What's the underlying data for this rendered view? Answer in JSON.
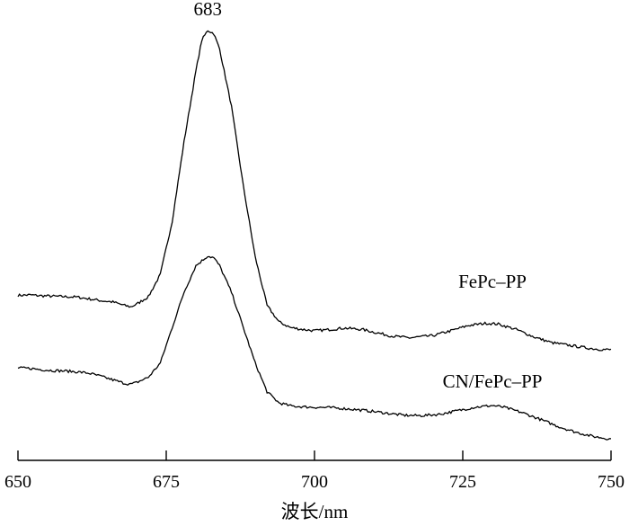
{
  "chart_data": {
    "type": "line",
    "title": "",
    "xlabel": "波长/nm",
    "ylabel": "",
    "xlim": [
      650,
      750
    ],
    "ylim": [
      0,
      1
    ],
    "x_ticks": [
      650,
      675,
      700,
      725,
      750
    ],
    "grid": false,
    "y_axis_visible": false,
    "annotations": [
      {
        "text": "683",
        "x": 682,
        "y": 0.97
      }
    ],
    "series": [
      {
        "name": "FePc–PP",
        "label_position": "right, above curve",
        "color": "#000000",
        "points": [
          [
            650,
            0.373
          ],
          [
            652,
            0.374
          ],
          [
            654,
            0.372
          ],
          [
            656,
            0.371
          ],
          [
            658,
            0.37
          ],
          [
            660,
            0.369
          ],
          [
            662,
            0.365
          ],
          [
            664,
            0.361
          ],
          [
            666,
            0.358
          ],
          [
            668,
            0.35
          ],
          [
            669,
            0.347
          ],
          [
            670,
            0.353
          ],
          [
            672,
            0.37
          ],
          [
            674,
            0.42
          ],
          [
            676,
            0.54
          ],
          [
            678,
            0.72
          ],
          [
            680,
            0.88
          ],
          [
            681,
            0.95
          ],
          [
            682,
            0.972
          ],
          [
            683,
            0.965
          ],
          [
            684,
            0.93
          ],
          [
            686,
            0.8
          ],
          [
            688,
            0.62
          ],
          [
            690,
            0.46
          ],
          [
            692,
            0.35
          ],
          [
            694,
            0.313
          ],
          [
            696,
            0.3
          ],
          [
            698,
            0.296
          ],
          [
            700,
            0.293
          ],
          [
            702,
            0.295
          ],
          [
            705,
            0.299
          ],
          [
            708,
            0.296
          ],
          [
            710,
            0.29
          ],
          [
            713,
            0.281
          ],
          [
            716,
            0.277
          ],
          [
            720,
            0.282
          ],
          [
            723,
            0.293
          ],
          [
            726,
            0.305
          ],
          [
            729,
            0.31
          ],
          [
            731,
            0.308
          ],
          [
            734,
            0.296
          ],
          [
            737,
            0.279
          ],
          [
            740,
            0.266
          ],
          [
            743,
            0.26
          ],
          [
            746,
            0.254
          ],
          [
            748,
            0.251
          ],
          [
            750,
            0.25
          ]
        ]
      },
      {
        "name": "CN/FePc–PP",
        "label_position": "right, above curve",
        "color": "#000000",
        "points": [
          [
            650,
            0.209
          ],
          [
            652,
            0.208
          ],
          [
            654,
            0.205
          ],
          [
            656,
            0.203
          ],
          [
            658,
            0.202
          ],
          [
            660,
            0.2
          ],
          [
            662,
            0.197
          ],
          [
            664,
            0.19
          ],
          [
            666,
            0.182
          ],
          [
            668,
            0.174
          ],
          [
            669,
            0.172
          ],
          [
            670,
            0.176
          ],
          [
            672,
            0.188
          ],
          [
            674,
            0.22
          ],
          [
            676,
            0.3
          ],
          [
            678,
            0.38
          ],
          [
            680,
            0.44
          ],
          [
            682,
            0.462
          ],
          [
            683,
            0.458
          ],
          [
            684,
            0.44
          ],
          [
            686,
            0.38
          ],
          [
            688,
            0.3
          ],
          [
            690,
            0.22
          ],
          [
            692,
            0.155
          ],
          [
            694,
            0.13
          ],
          [
            696,
            0.123
          ],
          [
            698,
            0.121
          ],
          [
            700,
            0.12
          ],
          [
            703,
            0.119
          ],
          [
            706,
            0.116
          ],
          [
            709,
            0.112
          ],
          [
            712,
            0.107
          ],
          [
            715,
            0.102
          ],
          [
            718,
            0.101
          ],
          [
            721,
            0.104
          ],
          [
            724,
            0.112
          ],
          [
            727,
            0.12
          ],
          [
            730,
            0.124
          ],
          [
            732,
            0.12
          ],
          [
            735,
            0.108
          ],
          [
            738,
            0.093
          ],
          [
            741,
            0.077
          ],
          [
            744,
            0.064
          ],
          [
            747,
            0.054
          ],
          [
            750,
            0.048
          ]
        ]
      }
    ]
  }
}
